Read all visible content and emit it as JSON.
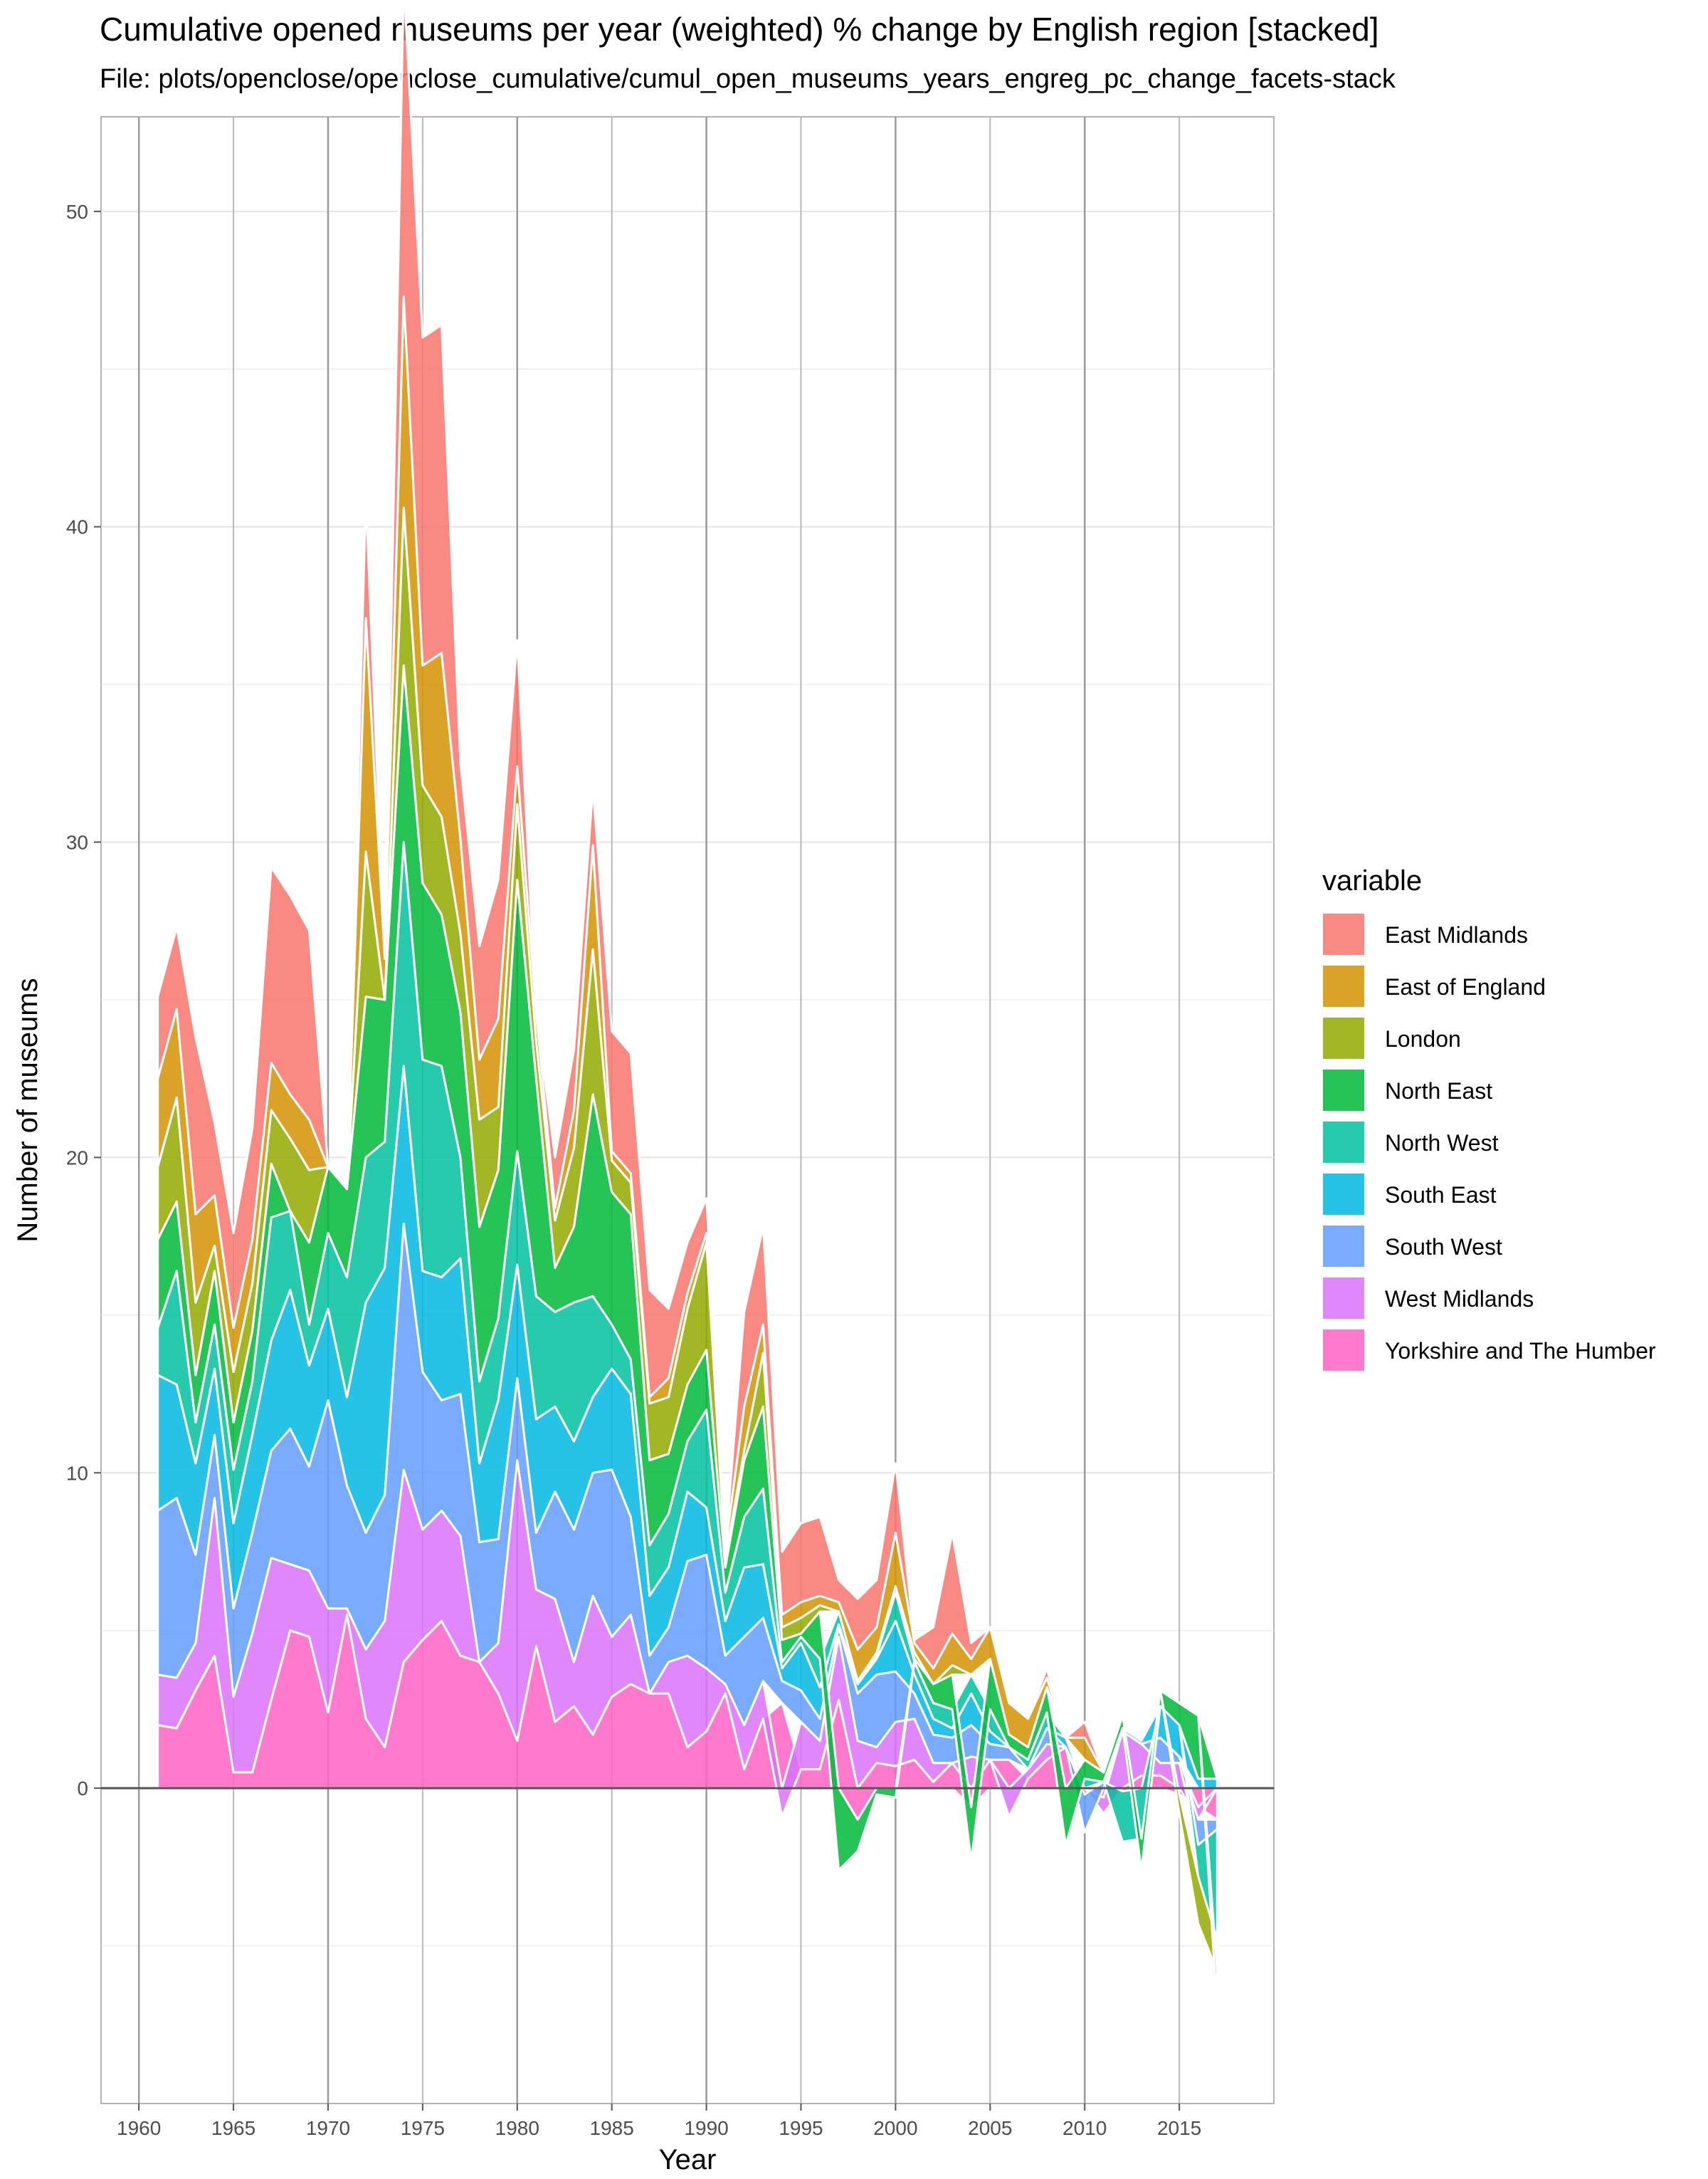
{
  "chart_data": {
    "type": "area",
    "stacked": true,
    "title": "Cumulative opened museums per year (weighted) % change by English region [stacked]",
    "subtitle": "File: plots/openclose/openclose_cumulative/cumul_open_museums_years_engreg_pc_change_facets-stack",
    "xlabel": "Year",
    "ylabel": "Number of museums",
    "xlim": [
      1958,
      2020
    ],
    "ylim": [
      -10,
      53
    ],
    "x_ticks": [
      1960,
      1965,
      1970,
      1975,
      1980,
      1985,
      1990,
      1995,
      2000,
      2005,
      2010,
      2015
    ],
    "x_ticks_labels": [
      "1960",
      "1965",
      "1970",
      "1975",
      "1980",
      "1985",
      "1990",
      "1995",
      "2000",
      "2005",
      "2010",
      "2015"
    ],
    "y_ticks": [
      0,
      10,
      20,
      30,
      40,
      50
    ],
    "y_ticks_labels": [
      "0",
      "10",
      "20",
      "30",
      "40",
      "50"
    ],
    "grid": true,
    "legend_title": "variable",
    "legend_position": "right",
    "x": [
      1961,
      1962,
      1963,
      1964,
      1965,
      1966,
      1967,
      1968,
      1969,
      1970,
      1971,
      1972,
      1973,
      1974,
      1975,
      1976,
      1977,
      1978,
      1979,
      1980,
      1981,
      1982,
      1983,
      1984,
      1985,
      1986,
      1987,
      1988,
      1989,
      1990,
      1991,
      1992,
      1993,
      1994,
      1995,
      1996,
      1997,
      1998,
      1999,
      2000,
      2001,
      2002,
      2003,
      2004,
      2005,
      2006,
      2007,
      2008,
      2009,
      2010,
      2011,
      2012,
      2013,
      2014,
      2015,
      2016,
      2017
    ],
    "series": [
      {
        "name": "Yorkshire and The Humber",
        "color": "#FF61C3",
        "values": [
          2.0,
          1.9,
          3.1,
          4.2,
          0.5,
          0.5,
          2.8,
          5.0,
          4.8,
          2.4,
          5.5,
          2.2,
          1.3,
          4.0,
          4.7,
          5.3,
          4.2,
          4.0,
          3.0,
          1.5,
          4.5,
          2.1,
          2.6,
          1.7,
          2.9,
          3.3,
          3.0,
          3.0,
          1.3,
          1.8,
          3.0,
          0.6,
          2.2,
          2.7,
          0.6,
          0.6,
          2.8,
          -1.0,
          0.8,
          0.7,
          0.9,
          0.2,
          0.8,
          -0.6,
          0.9,
          0.9,
          0.3,
          0.9,
          1.3,
          -0.2,
          -0.3,
          -0.1,
          0.4,
          0.4,
          -0.2,
          -0.6,
          -1.0
        ]
      },
      {
        "name": "West Midlands",
        "color": "#DB72FB",
        "values": [
          1.6,
          1.6,
          1.5,
          5.0,
          2.4,
          4.4,
          4.5,
          2.1,
          2.1,
          3.3,
          0.2,
          2.2,
          4.0,
          6.1,
          3.5,
          3.5,
          3.8,
          0.0,
          1.6,
          8.9,
          1.8,
          3.9,
          1.4,
          4.4,
          1.9,
          2.2,
          0.0,
          1.0,
          2.9,
          2.0,
          0.3,
          1.4,
          1.2,
          -0.9,
          1.5,
          0.9,
          2.0,
          1.5,
          0.5,
          1.4,
          1.3,
          0.6,
          0.0,
          1.0,
          0.0,
          -0.9,
          0.3,
          0.5,
          0.0,
          0.0,
          -0.5,
          1.8,
          1.0,
          0.4,
          0.8,
          -0.4,
          0.0
        ]
      },
      {
        "name": "South West",
        "color": "#619CFF",
        "values": [
          5.2,
          5.7,
          2.8,
          2.0,
          2.8,
          3.2,
          3.4,
          4.3,
          3.3,
          6.6,
          3.9,
          3.7,
          4.0,
          7.8,
          5.0,
          3.5,
          4.5,
          3.8,
          3.3,
          2.6,
          1.8,
          3.4,
          4.2,
          3.9,
          5.3,
          3.1,
          1.2,
          1.1,
          3.0,
          3.6,
          0.9,
          2.8,
          2.0,
          0.7,
          1.0,
          0.7,
          0.3,
          1.5,
          2.3,
          1.6,
          0.8,
          0.9,
          0.8,
          1.0,
          0.5,
          0.4,
          0.0,
          0.5,
          0.0,
          -1.2,
          0.2,
          0.0,
          0.0,
          0.8,
          0.2,
          -0.8,
          -0.3
        ]
      },
      {
        "name": "South East",
        "color": "#00B9E3",
        "values": [
          4.3,
          3.6,
          2.9,
          2.1,
          2.7,
          3.1,
          3.5,
          4.4,
          3.2,
          2.9,
          2.8,
          7.3,
          7.2,
          5.0,
          3.2,
          3.9,
          4.3,
          2.5,
          4.4,
          3.6,
          3.6,
          2.7,
          2.8,
          2.4,
          3.2,
          3.9,
          1.9,
          1.9,
          2.2,
          1.5,
          1.1,
          2.2,
          1.7,
          0.4,
          1.5,
          1.0,
          0.1,
          0.3,
          0.5,
          1.6,
          0.6,
          0.5,
          0.3,
          1.0,
          0.4,
          0.0,
          0.0,
          0.0,
          0.3,
          0.0,
          0.0,
          0.1,
          0.1,
          1.0,
          1.0,
          0.3,
          0.3
        ]
      },
      {
        "name": "North West",
        "color": "#00C19F",
        "values": [
          1.5,
          3.6,
          1.3,
          1.4,
          1.7,
          1.7,
          3.9,
          2.5,
          1.3,
          2.4,
          3.8,
          4.6,
          4.0,
          7.1,
          6.7,
          6.7,
          3.2,
          2.6,
          2.6,
          3.6,
          3.9,
          3.0,
          4.4,
          3.2,
          1.4,
          1.1,
          1.6,
          1.7,
          1.6,
          3.1,
          0.9,
          1.6,
          2.4,
          0.2,
          0.2,
          0.9,
          0.4,
          0.1,
          0.1,
          0.9,
          0.4,
          0.5,
          0.6,
          0.6,
          0.7,
          0.0,
          0.3,
          0.5,
          0.0,
          0.3,
          0.0,
          -1.6,
          -1.6,
          0.0,
          0.0,
          -1.0,
          -3.5
        ]
      },
      {
        "name": "North East",
        "color": "#00BA38",
        "values": [
          2.8,
          2.2,
          1.5,
          1.7,
          1.5,
          1.6,
          1.7,
          0.0,
          2.6,
          2.1,
          2.8,
          5.1,
          4.5,
          5.6,
          5.6,
          4.8,
          4.6,
          4.9,
          4.7,
          8.6,
          6.9,
          1.4,
          2.4,
          6.4,
          4.2,
          4.6,
          2.7,
          1.9,
          1.8,
          1.9,
          0.8,
          1.8,
          2.6,
          0.7,
          0.1,
          1.5,
          -2.6,
          -1.0,
          -0.2,
          -0.3,
          0.1,
          0.6,
          1.1,
          -1.7,
          1.6,
          0.4,
          0.4,
          0.8,
          -1.8,
          0.6,
          0.3,
          0.4,
          -1.0,
          0.5,
          0.7,
          2.0,
          0.0
        ]
      },
      {
        "name": "London",
        "color": "#93AA00",
        "values": [
          2.3,
          3.3,
          2.3,
          0.8,
          1.6,
          1.5,
          1.7,
          2.3,
          2.3,
          0.0,
          0.0,
          4.6,
          0.0,
          5.0,
          3.1,
          3.1,
          2.5,
          3.4,
          2.0,
          2.4,
          1.2,
          1.5,
          2.5,
          4.6,
          1.0,
          1.0,
          1.8,
          1.8,
          2.4,
          3.4,
          0.3,
          0.3,
          1.7,
          0.4,
          0.5,
          0.2,
          0.0,
          0.0,
          0.1,
          0.2,
          0.2,
          0.0,
          0.3,
          0.0,
          0.0,
          0.0,
          0.0,
          0.0,
          0.0,
          0.0,
          0.0,
          0.0,
          0.0,
          0.0,
          -0.6,
          -1.5,
          -1.0
        ]
      },
      {
        "name": "East of England",
        "color": "#D39200",
        "values": [
          2.8,
          2.8,
          2.8,
          1.6,
          1.4,
          1.4,
          1.5,
          1.4,
          1.6,
          0.0,
          0.0,
          7.4,
          1.3,
          6.7,
          3.8,
          5.2,
          3.0,
          1.9,
          2.8,
          1.2,
          0.9,
          0.4,
          1.2,
          3.3,
          0.3,
          0.3,
          0.2,
          0.6,
          0.5,
          0.3,
          0.3,
          1.4,
          0.9,
          0.4,
          0.5,
          0.3,
          0.3,
          1.0,
          0.8,
          1.7,
          0.3,
          0.5,
          1.0,
          0.5,
          1.0,
          1.0,
          0.9,
          0.3,
          0.0,
          0.7,
          0.0,
          0.0,
          0.0,
          0.0,
          0.0,
          0.0,
          0.0
        ]
      },
      {
        "name": "East Midlands",
        "color": "#F8766D",
        "values": [
          2.6,
          2.6,
          5.6,
          2.3,
          3.0,
          3.5,
          6.2,
          6.3,
          6.0,
          0.0,
          0.0,
          3.8,
          0.0,
          10.0,
          10.4,
          10.4,
          2.4,
          3.6,
          4.4,
          4.0,
          0.0,
          1.6,
          1.9,
          1.8,
          3.8,
          3.8,
          3.4,
          2.2,
          1.6,
          1.1,
          0.0,
          3.0,
          3.1,
          2.0,
          2.5,
          2.5,
          0.7,
          1.6,
          1.5,
          2.2,
          0.1,
          1.3,
          3.2,
          0.5,
          0.0,
          0.0,
          0.0,
          0.3,
          0.0,
          0.5,
          0.0,
          0.0,
          0.0,
          0.0,
          0.0,
          0.0,
          -1.2
        ]
      }
    ],
    "legend_order": [
      "East Midlands",
      "East of England",
      "London",
      "North East",
      "North West",
      "South East",
      "South West",
      "West Midlands",
      "Yorkshire and The Humber"
    ]
  }
}
